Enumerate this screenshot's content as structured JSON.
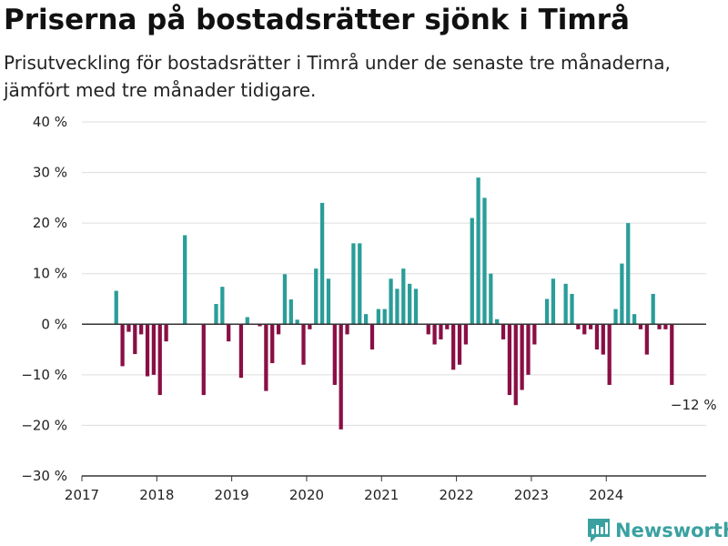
{
  "header": {
    "title": "Priserna på bostadsrätter sjönk i Timrå",
    "subtitle": "Prisutveckling för bostadsrätter i Timrå under de senaste tre månaderna, jämfört med tre månader tidigare."
  },
  "brand": {
    "name": "Newsworthy"
  },
  "colors": {
    "positive": "#2a9d99",
    "negative": "#8a0f45",
    "grid": "#dddddd",
    "axis": "#333333",
    "brand": "#3aa1a0"
  },
  "chart_data": {
    "type": "bar",
    "title": "Priserna på bostadsrätter sjönk i Timrå",
    "subtitle": "Prisutveckling för bostadsrätter i Timrå under de senaste tre månaderna, jämfört med tre månader tidigare.",
    "xlabel": "",
    "ylabel": "",
    "unit": "%",
    "ylim": [
      -30,
      40
    ],
    "yticks": [
      {
        "value": 40,
        "label": "40 %"
      },
      {
        "value": 30,
        "label": "30 %"
      },
      {
        "value": 20,
        "label": "20 %"
      },
      {
        "value": 10,
        "label": "10 %"
      },
      {
        "value": 0,
        "label": "0 %"
      },
      {
        "value": -10,
        "label": "−10 %"
      },
      {
        "value": -20,
        "label": "−20 %"
      },
      {
        "value": -30,
        "label": "−30 %"
      }
    ],
    "xlim": [
      "2017-01",
      "2025-05"
    ],
    "xticks": [
      "2017",
      "2018",
      "2019",
      "2020",
      "2021",
      "2022",
      "2023",
      "2024"
    ],
    "grid": true,
    "annotation": {
      "date": "2024-11",
      "text": "−12 %"
    },
    "points": [
      {
        "date": "2017-06",
        "value": 6.6
      },
      {
        "date": "2017-07",
        "value": -8.3
      },
      {
        "date": "2017-08",
        "value": -1.5
      },
      {
        "date": "2017-09",
        "value": -5.9
      },
      {
        "date": "2017-10",
        "value": -2.0
      },
      {
        "date": "2017-11",
        "value": -10.3
      },
      {
        "date": "2017-12",
        "value": -10.0
      },
      {
        "date": "2018-01",
        "value": -14.0
      },
      {
        "date": "2018-02",
        "value": -3.4
      },
      {
        "date": "2018-05",
        "value": 17.6
      },
      {
        "date": "2018-08",
        "value": -14.0
      },
      {
        "date": "2018-10",
        "value": 4.0
      },
      {
        "date": "2018-11",
        "value": 7.4
      },
      {
        "date": "2018-12",
        "value": -3.4
      },
      {
        "date": "2019-02",
        "value": -10.6
      },
      {
        "date": "2019-03",
        "value": 1.4
      },
      {
        "date": "2019-05",
        "value": -0.4
      },
      {
        "date": "2019-06",
        "value": -13.2
      },
      {
        "date": "2019-07",
        "value": -7.7
      },
      {
        "date": "2019-08",
        "value": -2.0
      },
      {
        "date": "2019-09",
        "value": 9.9
      },
      {
        "date": "2019-10",
        "value": 4.9
      },
      {
        "date": "2019-11",
        "value": 0.9
      },
      {
        "date": "2019-12",
        "value": -8.0
      },
      {
        "date": "2020-01",
        "value": -1.0
      },
      {
        "date": "2020-02",
        "value": 11.0
      },
      {
        "date": "2020-03",
        "value": 24.0
      },
      {
        "date": "2020-04",
        "value": 9.0
      },
      {
        "date": "2020-05",
        "value": -12.0
      },
      {
        "date": "2020-06",
        "value": -20.8
      },
      {
        "date": "2020-07",
        "value": -2.0
      },
      {
        "date": "2020-08",
        "value": 16.0
      },
      {
        "date": "2020-09",
        "value": 16.0
      },
      {
        "date": "2020-10",
        "value": 2.0
      },
      {
        "date": "2020-11",
        "value": -5.0
      },
      {
        "date": "2020-12",
        "value": 3.0
      },
      {
        "date": "2021-01",
        "value": 3.0
      },
      {
        "date": "2021-02",
        "value": 9.0
      },
      {
        "date": "2021-03",
        "value": 7.0
      },
      {
        "date": "2021-04",
        "value": 11.0
      },
      {
        "date": "2021-05",
        "value": 8.0
      },
      {
        "date": "2021-06",
        "value": 7.0
      },
      {
        "date": "2021-08",
        "value": -2.0
      },
      {
        "date": "2021-09",
        "value": -4.0
      },
      {
        "date": "2021-10",
        "value": -3.0
      },
      {
        "date": "2021-11",
        "value": -1.0
      },
      {
        "date": "2021-12",
        "value": -9.0
      },
      {
        "date": "2022-01",
        "value": -8.0
      },
      {
        "date": "2022-02",
        "value": -4.0
      },
      {
        "date": "2022-03",
        "value": 21.0
      },
      {
        "date": "2022-04",
        "value": 29.0
      },
      {
        "date": "2022-05",
        "value": 25.0
      },
      {
        "date": "2022-06",
        "value": 10.0
      },
      {
        "date": "2022-07",
        "value": 1.0
      },
      {
        "date": "2022-08",
        "value": -3.0
      },
      {
        "date": "2022-09",
        "value": -14.0
      },
      {
        "date": "2022-10",
        "value": -16.0
      },
      {
        "date": "2022-11",
        "value": -13.0
      },
      {
        "date": "2022-12",
        "value": -10.0
      },
      {
        "date": "2023-01",
        "value": -4.0
      },
      {
        "date": "2023-03",
        "value": 5.0
      },
      {
        "date": "2023-04",
        "value": 9.0
      },
      {
        "date": "2023-06",
        "value": 8.0
      },
      {
        "date": "2023-07",
        "value": 6.0
      },
      {
        "date": "2023-08",
        "value": -1.0
      },
      {
        "date": "2023-09",
        "value": -2.0
      },
      {
        "date": "2023-10",
        "value": -1.0
      },
      {
        "date": "2023-11",
        "value": -5.0
      },
      {
        "date": "2023-12",
        "value": -6.0
      },
      {
        "date": "2024-01",
        "value": -12.0
      },
      {
        "date": "2024-02",
        "value": 3.0
      },
      {
        "date": "2024-03",
        "value": 12.0
      },
      {
        "date": "2024-04",
        "value": 20.0
      },
      {
        "date": "2024-05",
        "value": 2.0
      },
      {
        "date": "2024-06",
        "value": -1.0
      },
      {
        "date": "2024-07",
        "value": -6.0
      },
      {
        "date": "2024-08",
        "value": 6.0
      },
      {
        "date": "2024-09",
        "value": -1.0
      },
      {
        "date": "2024-10",
        "value": -1.0
      },
      {
        "date": "2024-11",
        "value": -12.0
      }
    ]
  }
}
